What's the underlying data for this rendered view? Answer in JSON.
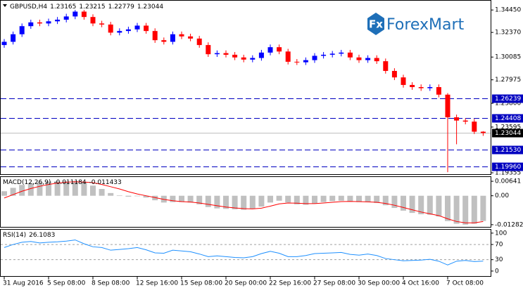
{
  "chart_data": {
    "type": "candlestick",
    "title": "GBPUSD,H4",
    "watermark": "ForexMart",
    "logo_icon": "Fx",
    "categories": [
      "31 Aug 2016",
      null,
      null,
      null,
      null,
      "5 Sep 08:00",
      null,
      null,
      null,
      null,
      "8 Sep 08:00",
      null,
      null,
      null,
      null,
      "12 Sep 16:00",
      null,
      null,
      null,
      null,
      "15 Sep 08:00",
      null,
      null,
      null,
      null,
      "20 Sep 00:00",
      null,
      null,
      null,
      null,
      "22 Sep 16:00",
      null,
      null,
      null,
      null,
      "27 Sep 08:00",
      null,
      null,
      null,
      null,
      "30 Sep 00:00",
      null,
      null,
      null,
      null,
      "4 Oct 16:00",
      null,
      null,
      null,
      null,
      "7 Oct 08:00",
      null,
      null,
      null,
      null
    ],
    "open": [
      1.312,
      1.315,
      1.322,
      1.3295,
      1.333,
      1.332,
      1.334,
      1.3355,
      1.3385,
      1.343,
      1.338,
      1.332,
      1.331,
      1.3235,
      1.325,
      1.3265,
      1.33,
      1.325,
      1.3165,
      1.315,
      1.322,
      1.32,
      1.318,
      1.312,
      1.3035,
      1.3045,
      1.303,
      1.3005,
      1.2985,
      1.3,
      1.305,
      1.31,
      1.306,
      1.2965,
      1.296,
      1.298,
      1.302,
      1.303,
      1.304,
      1.305,
      1.3005,
      1.298,
      1.3,
      1.297,
      1.288,
      1.282,
      1.275,
      1.273,
      1.272,
      1.273,
      1.266,
      1.245,
      1.242,
      1.241,
      1.23165
    ],
    "high": [
      1.3175,
      1.3245,
      1.332,
      1.3355,
      1.3355,
      1.3365,
      1.338,
      1.341,
      1.3445,
      1.3445,
      1.3405,
      1.3345,
      1.3335,
      1.3275,
      1.329,
      1.3325,
      1.3325,
      1.3275,
      1.319,
      1.3245,
      1.3245,
      1.3225,
      1.3205,
      1.3145,
      1.307,
      1.307,
      1.3055,
      1.303,
      1.3025,
      1.3075,
      1.3125,
      1.3125,
      1.3085,
      1.299,
      1.3005,
      1.3045,
      1.3055,
      1.3065,
      1.3075,
      1.3075,
      1.303,
      1.3025,
      1.3025,
      1.2995,
      1.2905,
      1.2845,
      1.2775,
      1.2755,
      1.2755,
      1.2755,
      1.2675,
      1.2475,
      1.244,
      1.2435,
      1.23215
    ],
    "low": [
      1.3095,
      1.3125,
      1.3195,
      1.327,
      1.3295,
      1.3295,
      1.3315,
      1.333,
      1.336,
      1.3355,
      1.3295,
      1.3285,
      1.321,
      1.321,
      1.3225,
      1.324,
      1.3225,
      1.314,
      1.3125,
      1.3125,
      1.3175,
      1.3155,
      1.3095,
      1.301,
      1.301,
      1.3005,
      1.298,
      1.296,
      1.296,
      1.2975,
      1.3025,
      1.3035,
      1.294,
      1.2935,
      1.2935,
      1.2955,
      1.2995,
      1.3005,
      1.3015,
      1.298,
      1.2955,
      1.2955,
      1.2945,
      1.2855,
      1.2795,
      1.2725,
      1.2705,
      1.2695,
      1.2695,
      1.2635,
      1.1941,
      1.22,
      1.2385,
      1.2295,
      1.22779
    ],
    "close": [
      1.315,
      1.322,
      1.3295,
      1.333,
      1.332,
      1.334,
      1.3355,
      1.3385,
      1.343,
      1.338,
      1.332,
      1.331,
      1.3235,
      1.325,
      1.3265,
      1.33,
      1.325,
      1.3165,
      1.315,
      1.322,
      1.32,
      1.318,
      1.312,
      1.3035,
      1.3045,
      1.303,
      1.3005,
      1.2985,
      1.3,
      1.305,
      1.31,
      1.306,
      1.2965,
      1.296,
      1.298,
      1.302,
      1.303,
      1.304,
      1.305,
      1.3005,
      1.298,
      1.3,
      1.297,
      1.288,
      1.282,
      1.275,
      1.273,
      1.272,
      1.273,
      1.266,
      1.245,
      1.242,
      1.241,
      1.23165,
      1.23044
    ],
    "up_color": "#0000ff",
    "down_color": "#ff0000",
    "ylim": [
      1.1916,
      1.3531
    ],
    "yticks": [
      {
        "value": 1.3445,
        "label": "1.34450"
      },
      {
        "value": 1.3237,
        "label": "1.32370"
      },
      1.30085,
      1.27975,
      {
        "value": 1.258,
        "label": "1.25800"
      },
      1.23595,
      1.19355
    ],
    "levels": [
      1.26239,
      1.24408,
      {
        "value": 1.2153,
        "label": "1.21530"
      },
      {
        "value": 1.1996,
        "label": "1.19960"
      }
    ],
    "level_color": "#0000c0",
    "price_line_color": "#c0c0c0",
    "macd": {
      "title": "MACD(12,26,9)",
      "histogram": [
        0.002,
        0.0035,
        0.0048,
        0.0056,
        0.006,
        0.0063,
        0.0064,
        0.0064,
        0.0065,
        0.0058,
        0.0045,
        0.003,
        0.0012,
        0.0002,
        -0.0004,
        -0.0002,
        -0.0008,
        -0.002,
        -0.003,
        -0.0028,
        -0.0028,
        -0.003,
        -0.0038,
        -0.005,
        -0.0056,
        -0.0058,
        -0.006,
        -0.0062,
        -0.0058,
        -0.0048,
        -0.003,
        -0.0022,
        -0.003,
        -0.0038,
        -0.004,
        -0.0034,
        -0.0028,
        -0.0024,
        -0.0022,
        -0.0024,
        -0.0028,
        -0.0028,
        -0.0032,
        -0.0042,
        -0.0054,
        -0.0066,
        -0.0076,
        -0.0082,
        -0.0084,
        -0.0092,
        -0.0112,
        -0.0124,
        -0.0128,
        -0.0124,
        -0.011184
      ],
      "signal": [
        -0.001,
        0.0005,
        0.002,
        0.0032,
        0.0042,
        0.005,
        0.0056,
        0.006,
        0.0062,
        0.0061,
        0.0058,
        0.005,
        0.004,
        0.003,
        0.0018,
        0.0008,
        0.0,
        -0.0008,
        -0.0016,
        -0.0022,
        -0.0026,
        -0.0028,
        -0.0032,
        -0.0038,
        -0.0044,
        -0.005,
        -0.0054,
        -0.0057,
        -0.0058,
        -0.0055,
        -0.0046,
        -0.0036,
        -0.0032,
        -0.0033,
        -0.0035,
        -0.0035,
        -0.0032,
        -0.0029,
        -0.0026,
        -0.0025,
        -0.0026,
        -0.0027,
        -0.0029,
        -0.0034,
        -0.0042,
        -0.0052,
        -0.0062,
        -0.0072,
        -0.008,
        -0.0088,
        -0.0102,
        -0.0114,
        -0.012,
        -0.012,
        -0.011433
      ],
      "histogram_color": "#c0c0c0",
      "signal_color": "#ff0000",
      "ylim": [
        -0.0141,
        0.0083
      ],
      "yticks": [
        0.00641,
        {
          "value": 0,
          "label": "0.00"
        },
        -0.01282
      ]
    },
    "rsi": {
      "title": "RSI(14)",
      "values": [
        62,
        70,
        76,
        78,
        74,
        76,
        77,
        79,
        82,
        72,
        64,
        62,
        55,
        57,
        59,
        62,
        56,
        48,
        47,
        55,
        53,
        51,
        45,
        38,
        40,
        38,
        36,
        35,
        38,
        46,
        52,
        47,
        38,
        38,
        41,
        46,
        47,
        48,
        49,
        44,
        42,
        45,
        41,
        33,
        30,
        27,
        28,
        29,
        31,
        26,
        16,
        26,
        28,
        25,
        26.1083
      ],
      "color": "#1e90ff",
      "levels": [
        70,
        30
      ],
      "ylim": [
        -15,
        109
      ],
      "yticks": [
        100,
        70,
        30,
        0
      ]
    }
  }
}
